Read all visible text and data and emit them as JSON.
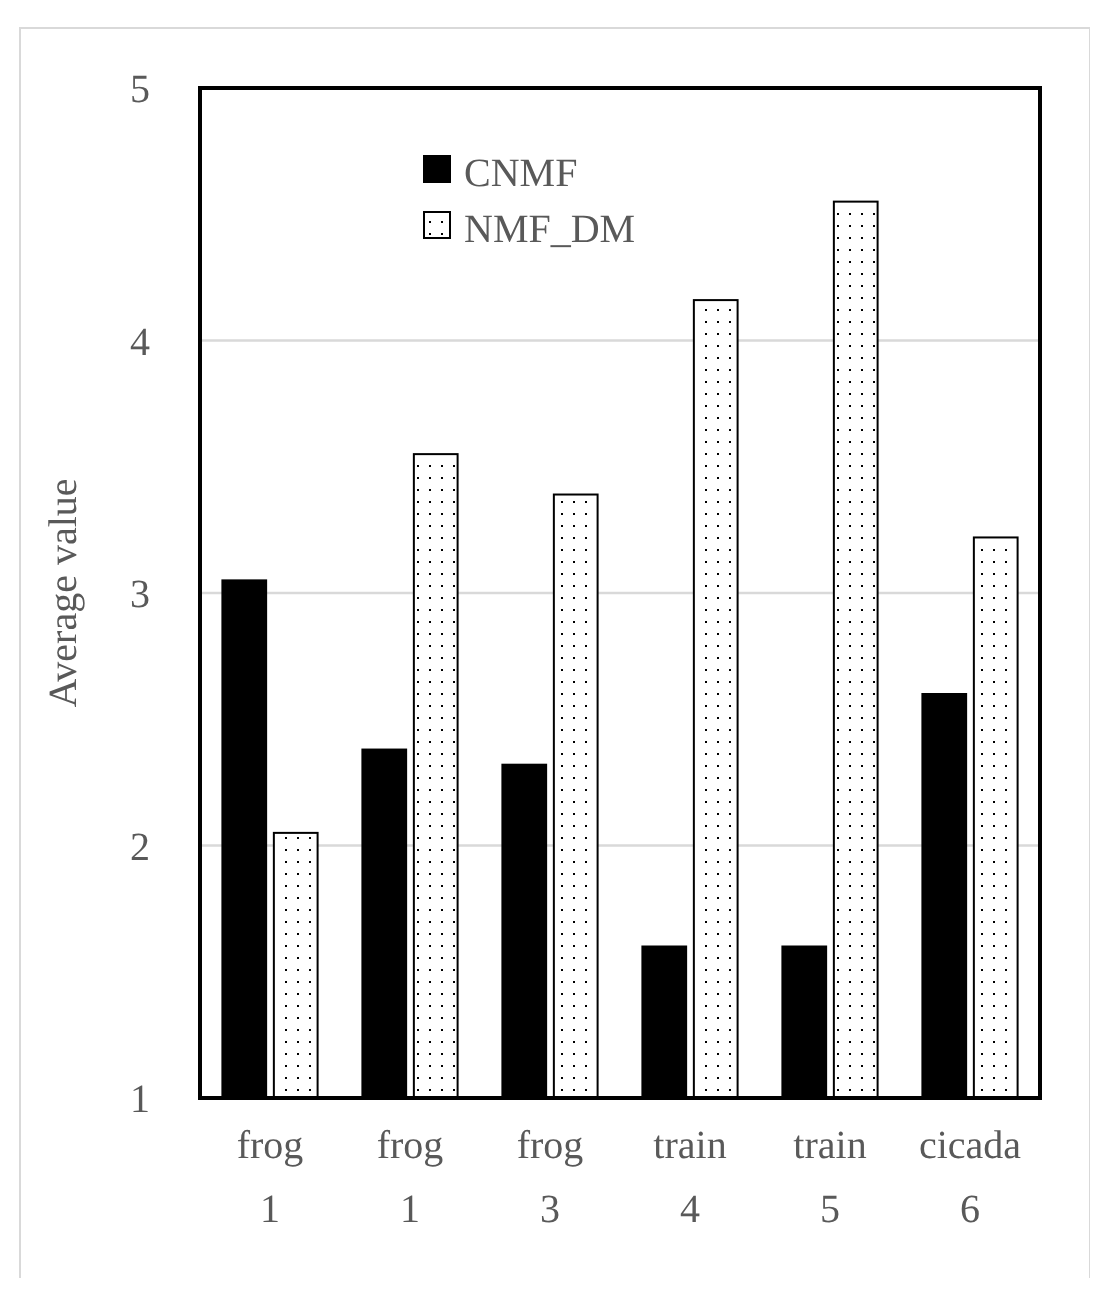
{
  "chart_data": {
    "type": "bar",
    "ylabel": "Average value",
    "categories": [
      "frog 1",
      "frog 1",
      "frog 3",
      "train 4",
      "train 5",
      "cicada 6"
    ],
    "series": [
      {
        "name": "CNMF",
        "color": "#000000",
        "values": [
          3.05,
          2.38,
          2.32,
          1.6,
          1.6,
          2.6
        ]
      },
      {
        "name": "NMF_DM",
        "color": "#ffffff",
        "values": [
          2.05,
          3.55,
          3.39,
          4.16,
          4.55,
          3.22
        ]
      }
    ],
    "ylim": [
      1,
      5
    ],
    "yticks": [
      1,
      2,
      3,
      4,
      5
    ],
    "grid": "y",
    "legend": "top left"
  }
}
